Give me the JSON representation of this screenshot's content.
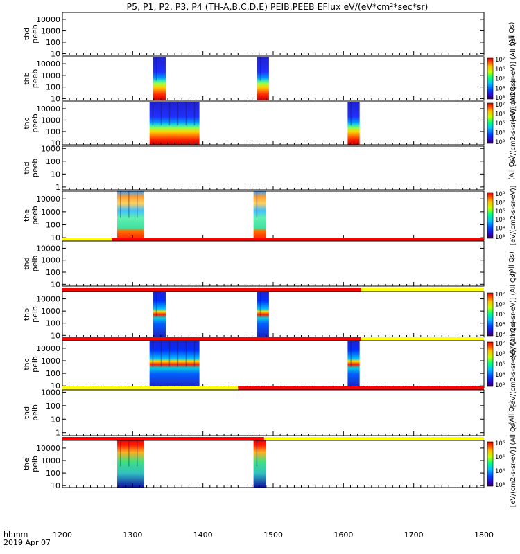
{
  "title": "P5, P1, P2, P3, P4 (TH-A,B,C,D,E) PEIB,PEEB EFlux eV/(eV*cm²*sec*sr)",
  "footer": {
    "time_label": "hhmm",
    "date_label": "2019 Apr 07"
  },
  "colors": {
    "frame": "#000000",
    "flag_red": "#ff0000",
    "flag_yellow": "#ffff00"
  },
  "chart_data": {
    "type": "heatmap",
    "xlim": [
      1200,
      1800
    ],
    "x_ticks": [
      "1200",
      "1300",
      "1400",
      "1500",
      "1600",
      "1700",
      "1800"
    ],
    "panels": [
      {
        "label": [
          "thd",
          "peeb"
        ],
        "ylim": [
          7,
          40000
        ],
        "yticks": [
          "10",
          "100",
          "1000",
          "10000"
        ],
        "colorbar": false,
        "sidelabel": "(All Qs)",
        "blocks": []
      },
      {
        "label": [
          "thb",
          "peeb"
        ],
        "ylim": [
          7,
          40000
        ],
        "yticks": [
          "10",
          "100",
          "1000",
          "10000"
        ],
        "colorbar": true,
        "cbar_ticks": [
          "10³",
          "10⁴",
          "10⁵",
          "10⁶",
          "10⁷"
        ],
        "sidelabel": "[eV/(cm2-s-sr-eV)] (All Qs)",
        "blocks": [
          {
            "x0": 1329,
            "x1": 1347,
            "style": "electron"
          },
          {
            "x0": 1477,
            "x1": 1494,
            "style": "electron"
          }
        ]
      },
      {
        "label": [
          "thc",
          "peeb"
        ],
        "ylim": [
          7,
          40000
        ],
        "yticks": [
          "10",
          "100",
          "1000",
          "10000"
        ],
        "colorbar": true,
        "cbar_ticks": [
          "10³",
          "10⁴",
          "10⁵",
          "10⁶",
          "10⁷"
        ],
        "sidelabel": "[eV/(cm2-s-sr-eV)] (All Qs)",
        "blocks": [
          {
            "x0": 1324,
            "x1": 1395,
            "style": "electron"
          },
          {
            "x0": 1606,
            "x1": 1623,
            "style": "electron"
          }
        ]
      },
      {
        "label": [
          "thd",
          "peeb"
        ],
        "ylim": [
          0.6,
          1500
        ],
        "yticks": [
          "1",
          "10",
          "100",
          "1000"
        ],
        "colorbar": false,
        "sidelabel": "(All Qs)",
        "blocks": []
      },
      {
        "label": [
          "the",
          "peeb"
        ],
        "ylim": [
          7,
          40000
        ],
        "yticks": [
          "10",
          "100",
          "1000",
          "10000"
        ],
        "colorbar": true,
        "cbar_ticks": [
          "10³",
          "10⁴",
          "10⁵",
          "10⁶",
          "10⁷",
          "10⁸"
        ],
        "sidelabel": "[eV/(cm2-s-sr-eV)]",
        "blocks": [
          {
            "x0": 1278,
            "x1": 1316,
            "style": "electron_mixed"
          },
          {
            "x0": 1472,
            "x1": 1490,
            "style": "electron_mixed"
          }
        ]
      },
      {
        "label": [
          "thd",
          "peib"
        ],
        "ylim": [
          7,
          40000
        ],
        "yticks": [
          "10",
          "100",
          "1000",
          "10000"
        ],
        "colorbar": false,
        "sidelabel": "(All Qs)",
        "flag_above": [
          {
            "x0": 1200,
            "x1": 1270,
            "c": "y"
          },
          {
            "x0": 1270,
            "x1": 1800,
            "c": "r"
          }
        ],
        "blocks": []
      },
      {
        "label": [
          "thb",
          "peib"
        ],
        "ylim": [
          7,
          40000
        ],
        "yticks": [
          "10",
          "100",
          "1000",
          "10000"
        ],
        "colorbar": true,
        "cbar_ticks": [
          "10³",
          "10⁴",
          "10⁵",
          "10⁶",
          "10⁷"
        ],
        "sidelabel": "[eV/(cm2-s-sr-eV)] (All Qs)",
        "flag_above": [
          {
            "x0": 1200,
            "x1": 1625,
            "c": "r"
          },
          {
            "x0": 1625,
            "x1": 1800,
            "c": "y"
          }
        ],
        "blocks": [
          {
            "x0": 1329,
            "x1": 1347,
            "style": "ion"
          },
          {
            "x0": 1477,
            "x1": 1494,
            "style": "ion"
          }
        ]
      },
      {
        "label": [
          "thc",
          "peib"
        ],
        "ylim": [
          7,
          40000
        ],
        "yticks": [
          "10",
          "100",
          "1000",
          "10000"
        ],
        "colorbar": true,
        "cbar_ticks": [
          "10³",
          "10⁴",
          "10⁵",
          "10⁶",
          "10⁷"
        ],
        "sidelabel": "[eV/(cm2-s-sr-eV)] (All Qs)",
        "flag_above": [
          {
            "x0": 1200,
            "x1": 1625,
            "c": "r"
          },
          {
            "x0": 1625,
            "x1": 1800,
            "c": "y"
          }
        ],
        "blocks": [
          {
            "x0": 1324,
            "x1": 1395,
            "style": "ion"
          },
          {
            "x0": 1606,
            "x1": 1623,
            "style": "ion"
          }
        ]
      },
      {
        "label": [
          "thd",
          "peib"
        ],
        "ylim": [
          0.6,
          1500
        ],
        "yticks": [
          "1",
          "10",
          "100",
          "1000"
        ],
        "colorbar": false,
        "sidelabel": "(All Qs)",
        "flag_above": [
          {
            "x0": 1200,
            "x1": 1450,
            "c": "y"
          },
          {
            "x0": 1450,
            "x1": 1800,
            "c": "r"
          }
        ],
        "blocks": []
      },
      {
        "label": [
          "the",
          "peib"
        ],
        "ylim": [
          7,
          40000
        ],
        "yticks": [
          "10",
          "100",
          "1000",
          "10000"
        ],
        "colorbar": true,
        "cbar_ticks": [
          "10³",
          "10⁴",
          "10⁵",
          "10⁶"
        ],
        "sidelabel": "[eV/(cm2-s-sr-eV)] (All Qs)",
        "flag_above": [
          {
            "x0": 1200,
            "x1": 1487,
            "c": "r"
          },
          {
            "x0": 1487,
            "x1": 1800,
            "c": "y"
          }
        ],
        "blocks": [
          {
            "x0": 1278,
            "x1": 1316,
            "style": "ion_mixed"
          },
          {
            "x0": 1472,
            "x1": 1490,
            "style": "ion_mixed"
          }
        ]
      }
    ]
  }
}
